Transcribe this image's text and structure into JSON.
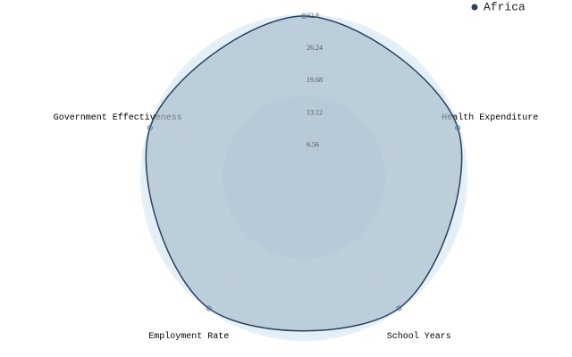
{
  "chart_data": {
    "type": "radar",
    "categories": [
      null,
      "Health Expenditure",
      "School Years",
      "Employment Rate",
      "Government Effectiveness"
    ],
    "series": [
      {
        "name": "Africa",
        "color": "#2a3f5f",
        "values": [
          32.8,
          32.8,
          32.8,
          32.8,
          32.8
        ]
      }
    ],
    "rlim": [
      0,
      32.8
    ],
    "rticks": [
      6.56,
      13.12,
      19.68,
      26.24,
      32.8
    ],
    "legend": "top-right"
  }
}
